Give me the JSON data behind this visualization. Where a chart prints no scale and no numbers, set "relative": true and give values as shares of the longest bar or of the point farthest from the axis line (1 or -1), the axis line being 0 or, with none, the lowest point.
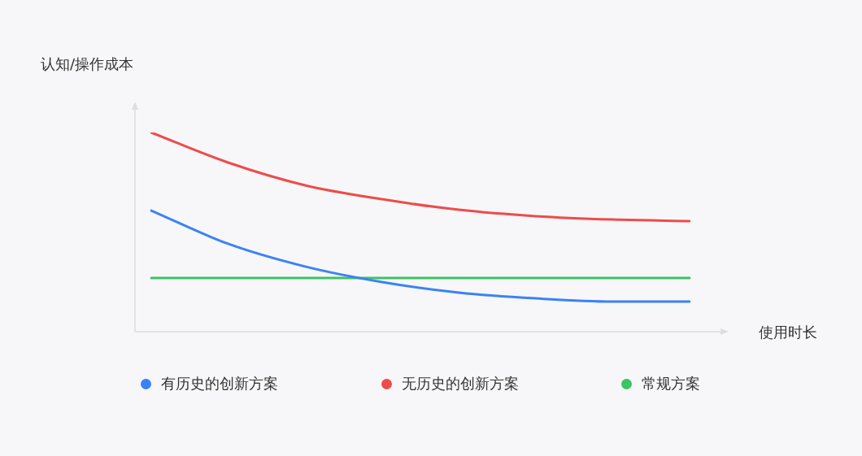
{
  "chart_data": {
    "type": "line",
    "relative": true,
    "ylabel": "认知/操作成本",
    "xlabel": "使用时长",
    "categories": [
      null,
      null,
      null,
      null,
      null,
      null,
      null,
      null
    ],
    "legend": "bottom",
    "marker": "none",
    "line_style": "solid",
    "series": [
      {
        "name": "有历史的创新方案",
        "color": "#3b82f6",
        "values": [
          0.608,
          0.441,
          0.327,
          0.249,
          0.196,
          0.167,
          0.151,
          0.151
        ]
      },
      {
        "name": "无历史的创新方案",
        "color": "#ef4b4b",
        "values": [
          1,
          0.849,
          0.735,
          0.665,
          0.612,
          0.58,
          0.563,
          0.555
        ]
      },
      {
        "name": "常规方案",
        "color": "#3cc362",
        "values": [
          0.269,
          0.269,
          0.269,
          0.269,
          0.269,
          0.269,
          0.269,
          0.269
        ]
      }
    ]
  }
}
